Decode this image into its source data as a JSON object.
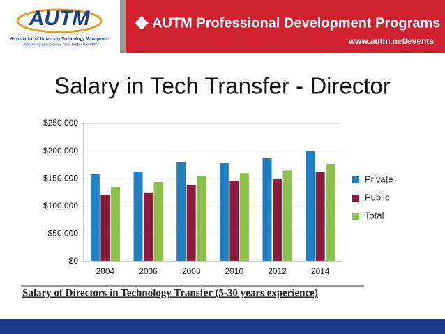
{
  "header": {
    "logo": "AUTM",
    "org_name": "Association of University Technology Managers®",
    "tagline": "Advancing Discoveries for a Better World®",
    "banner_title": "AUTM Professional Development Programs",
    "url": "www.autm.net/events"
  },
  "slide_title": "Salary in Tech Transfer - Director",
  "chart_data": {
    "type": "bar",
    "caption": "Salary of Directors in Technology Transfer (5-30 years experience)",
    "categories": [
      "2004",
      "2006",
      "2008",
      "2010",
      "2012",
      "2014"
    ],
    "series": [
      {
        "name": "Private",
        "color": "#1f7fc1",
        "values": [
          158000,
          163000,
          180000,
          178000,
          187000,
          200000
        ]
      },
      {
        "name": "Public",
        "color": "#8c1c3c",
        "values": [
          120000,
          124000,
          138000,
          146000,
          149000,
          162000
        ]
      },
      {
        "name": "Total",
        "color": "#8dc04b",
        "values": [
          135000,
          144000,
          155000,
          160000,
          165000,
          177000
        ]
      }
    ],
    "ylim": [
      0,
      250000
    ],
    "yticks": [
      {
        "value": 0,
        "label": "$0"
      },
      {
        "value": 50000,
        "label": "$50,000"
      },
      {
        "value": 100000,
        "label": "$100,000"
      },
      {
        "value": 150000,
        "label": "$150,000"
      },
      {
        "value": 200000,
        "label": "$200,000"
      },
      {
        "value": 250000,
        "label": "$250,000"
      }
    ],
    "grid": true,
    "legend": "right"
  }
}
